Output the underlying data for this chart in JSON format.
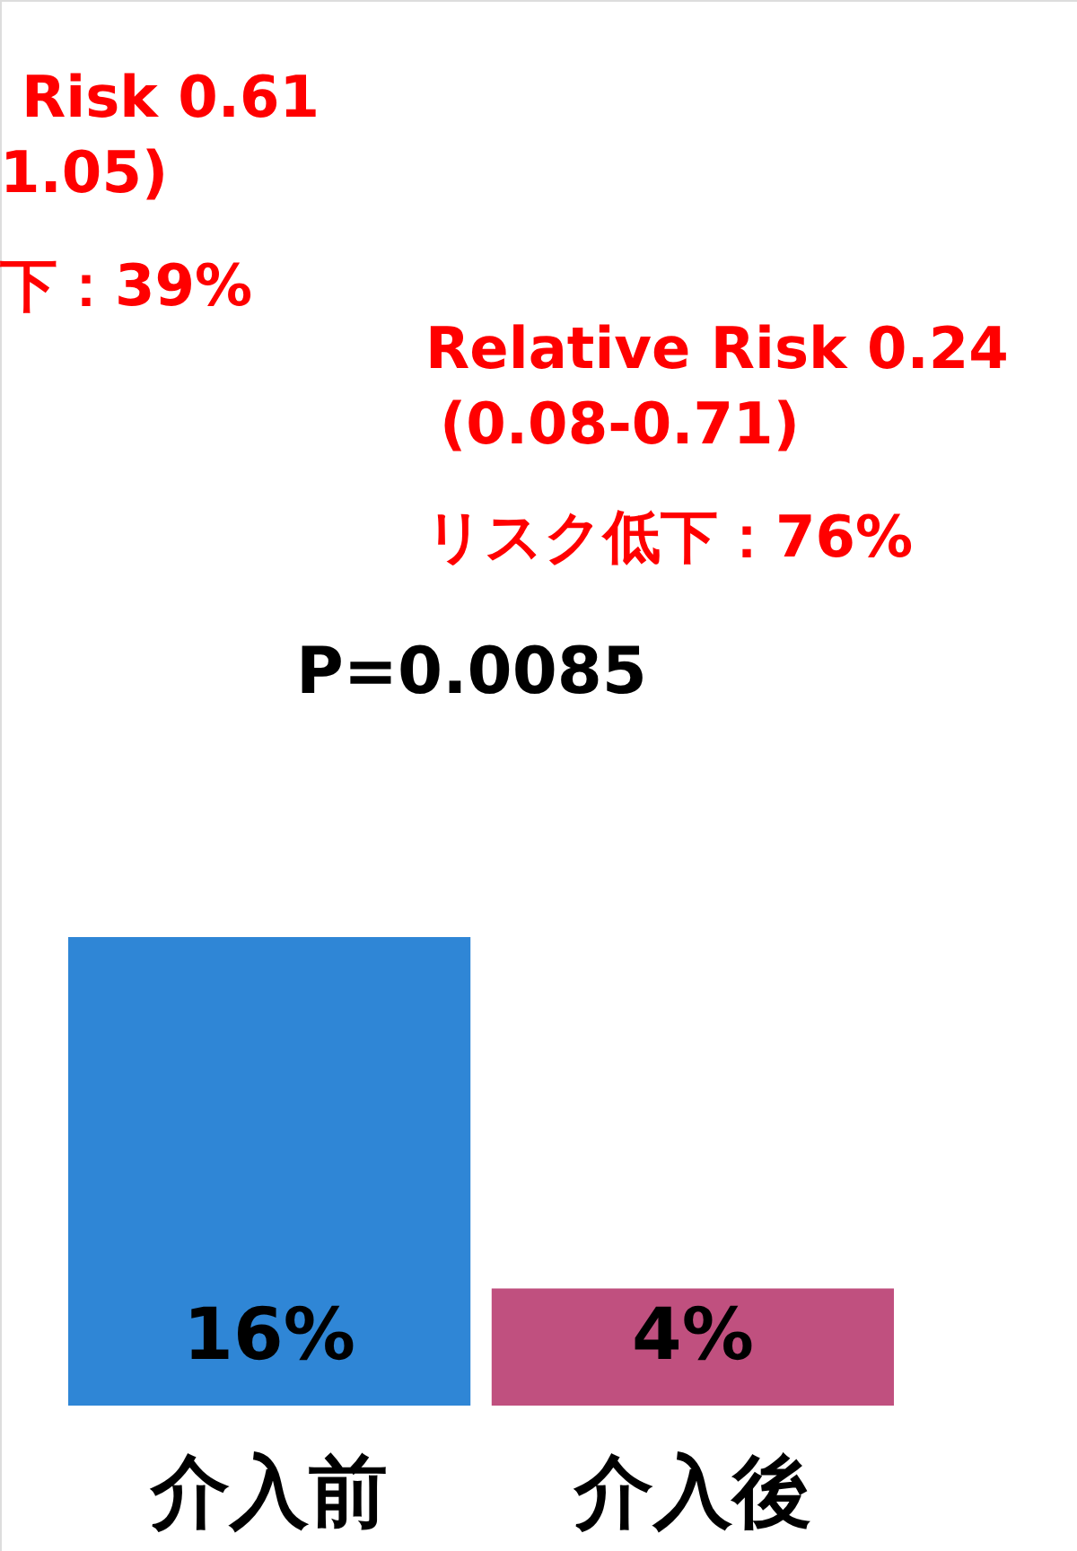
{
  "chart_data": {
    "type": "bar",
    "categories": [
      "介入前",
      "介入後"
    ],
    "values": [
      16,
      4
    ],
    "colors": [
      "#2f86d6",
      "#c0507f"
    ],
    "value_labels": [
      "16%",
      "4%"
    ],
    "annotations": [
      "Risk  0.61",
      "1.05)",
      "下：39%",
      "Relative Risk  0.24",
      "(0.08-0.71)",
      "リスク低下：76%",
      "P=0.0085"
    ]
  }
}
